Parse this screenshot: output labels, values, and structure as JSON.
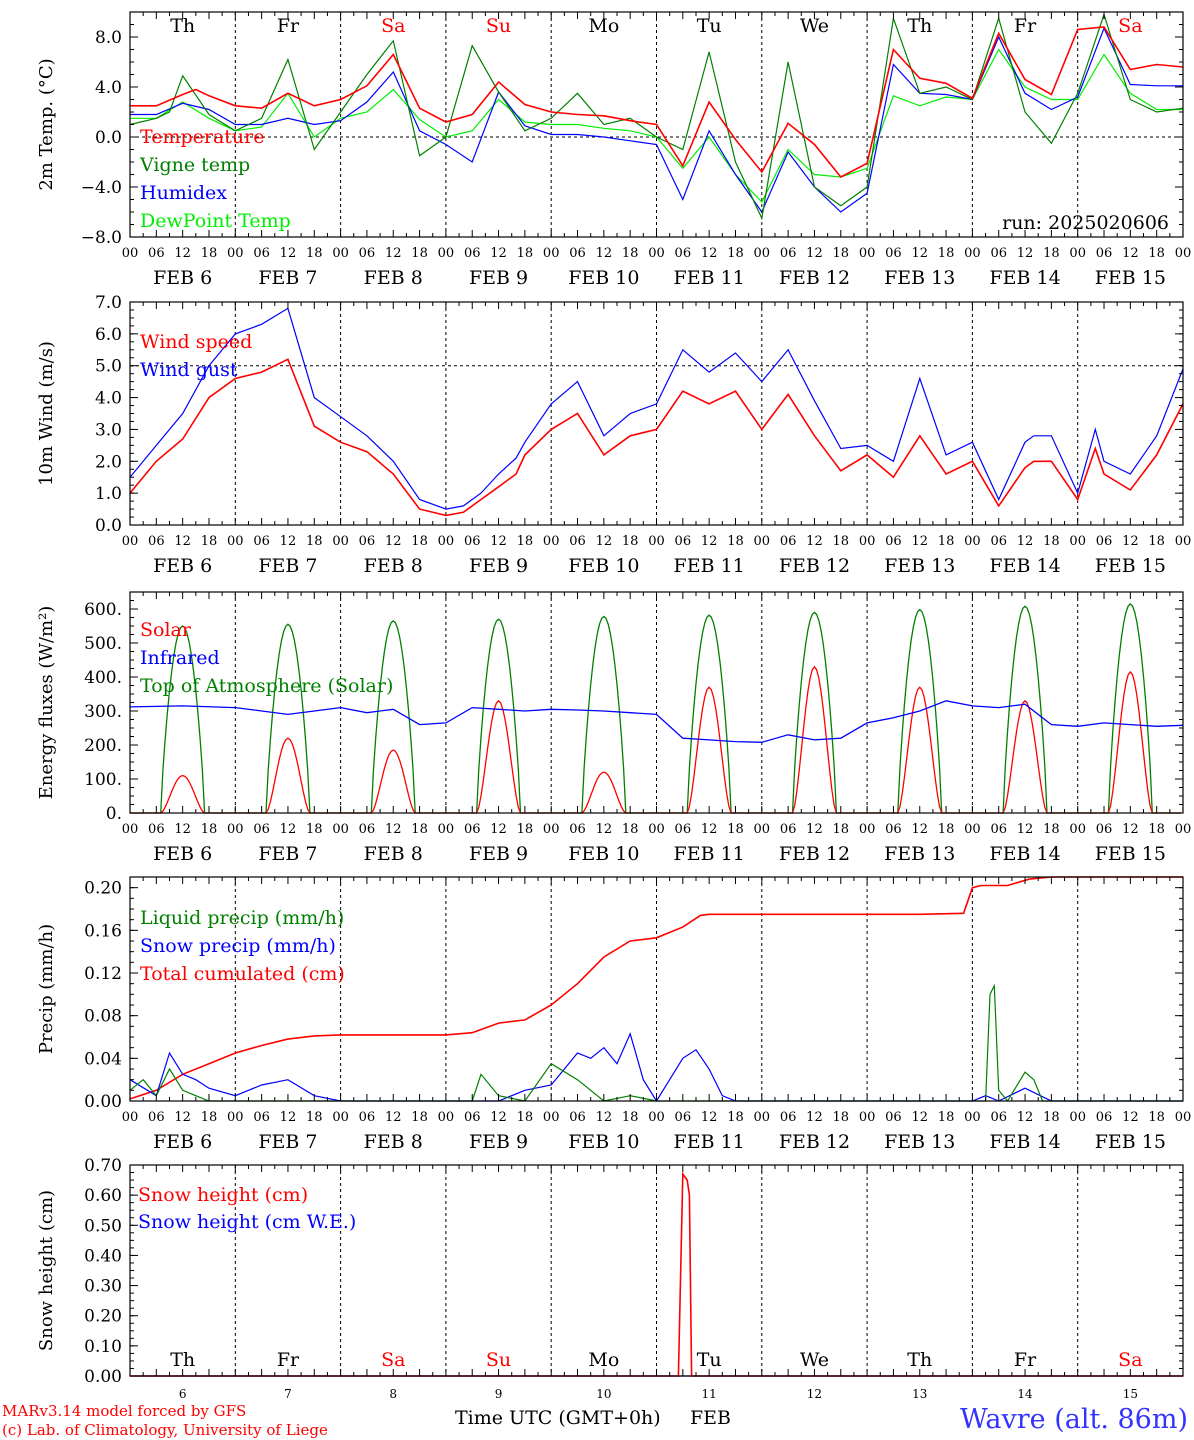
{
  "days": [
    {
      "wk": "Th",
      "date": "FEB  6",
      "num": "6",
      "wkColor": "#000000"
    },
    {
      "wk": "Fr",
      "date": "FEB  7",
      "num": "7",
      "wkColor": "#000000"
    },
    {
      "wk": "Sa",
      "date": "FEB  8",
      "num": "8",
      "wkColor": "#ff0000"
    },
    {
      "wk": "Su",
      "date": "FEB  9",
      "num": "9",
      "wkColor": "#ff0000"
    },
    {
      "wk": "Mo",
      "date": "FEB 10",
      "num": "10",
      "wkColor": "#000000"
    },
    {
      "wk": "Tu",
      "date": "FEB 11",
      "num": "11",
      "wkColor": "#000000"
    },
    {
      "wk": "We",
      "date": "FEB 12",
      "num": "12",
      "wkColor": "#000000"
    },
    {
      "wk": "Th",
      "date": "FEB 13",
      "num": "13",
      "wkColor": "#000000"
    },
    {
      "wk": "Fr",
      "date": "FEB 14",
      "num": "14",
      "wkColor": "#000000"
    },
    {
      "wk": "Sa",
      "date": "FEB 15",
      "num": "15",
      "wkColor": "#ff0000"
    }
  ],
  "hour_ticks": [
    "00",
    "06",
    "12",
    "18"
  ],
  "footer": {
    "model": "MARv3.14 model forced by GFS",
    "copyright": "(c) Lab. of Climatology, University of Liege",
    "xlabel": "Time UTC (GMT+0h)",
    "month": "FEB",
    "station": "Wavre (alt. 86m)"
  },
  "chart_data": [
    {
      "type": "line",
      "ylabel": "2m Temp. (°C)",
      "ylim": [
        -8,
        10
      ],
      "yticks": [
        -8,
        -4,
        0,
        4,
        8
      ],
      "ytick_labels": [
        "−8.0",
        "−4.0",
        "0.0",
        "4.0",
        "8.0"
      ],
      "refline": 0,
      "annotation": "run: 2025020606",
      "x_unit": "hours since FEB 6 00 UTC",
      "series": [
        {
          "name": "Temperature",
          "color": "#ff0000",
          "x": [
            0,
            6,
            12,
            15,
            18,
            24,
            30,
            36,
            42,
            48,
            54,
            60,
            66,
            72,
            78,
            84,
            90,
            96,
            102,
            108,
            114,
            120,
            126,
            132,
            138,
            144,
            150,
            156,
            162,
            168,
            174,
            180,
            186,
            192,
            198,
            204,
            210,
            216,
            222,
            228,
            234,
            240
          ],
          "y": [
            2.5,
            2.5,
            3.4,
            3.8,
            3.3,
            2.5,
            2.3,
            3.5,
            2.5,
            3.0,
            4.1,
            6.6,
            2.3,
            1.2,
            1.8,
            4.4,
            2.6,
            2.0,
            1.8,
            1.7,
            1.3,
            1.0,
            -2.3,
            2.8,
            -0.2,
            -2.8,
            1.1,
            -0.6,
            -3.2,
            -2.1,
            7.0,
            4.7,
            4.3,
            3.1,
            8.3,
            4.6,
            3.4,
            8.6,
            8.8,
            5.4,
            5.8,
            5.6
          ]
        },
        {
          "name": "Vigne temp",
          "color": "#008000",
          "x": [
            0,
            6,
            9,
            12,
            18,
            24,
            30,
            36,
            42,
            48,
            54,
            60,
            66,
            72,
            78,
            84,
            90,
            96,
            102,
            108,
            114,
            120,
            126,
            132,
            138,
            144,
            150,
            156,
            162,
            168,
            174,
            180,
            186,
            192,
            198,
            204,
            210,
            216,
            222,
            228,
            234,
            240
          ],
          "y": [
            1.0,
            1.5,
            2.0,
            4.9,
            1.8,
            0.5,
            1.5,
            6.2,
            -1.0,
            2.0,
            5.0,
            7.7,
            -1.5,
            0.0,
            7.3,
            3.6,
            0.5,
            1.5,
            3.5,
            1.0,
            1.5,
            0.0,
            -1.0,
            6.8,
            -2.0,
            -6.5,
            6.0,
            -4.0,
            -5.5,
            -4.0,
            9.5,
            3.5,
            4.0,
            3.0,
            9.5,
            2.0,
            -0.5,
            3.5,
            9.8,
            3.0,
            2.0,
            2.3
          ]
        },
        {
          "name": "Humidex",
          "color": "#0000ff",
          "x": [
            0,
            6,
            12,
            18,
            24,
            30,
            36,
            42,
            48,
            54,
            60,
            66,
            72,
            78,
            84,
            90,
            96,
            102,
            108,
            114,
            120,
            126,
            132,
            138,
            144,
            150,
            156,
            162,
            168,
            174,
            180,
            186,
            192,
            198,
            204,
            210,
            216,
            222,
            228,
            234,
            240
          ],
          "y": [
            1.8,
            1.8,
            2.7,
            2.2,
            1.0,
            1.0,
            1.5,
            1.0,
            1.3,
            2.8,
            5.2,
            0.5,
            -0.6,
            -2.0,
            3.6,
            0.9,
            0.2,
            0.2,
            0.0,
            -0.3,
            -0.6,
            -5.0,
            0.5,
            -3.0,
            -6.0,
            -1.2,
            -4.0,
            -6.0,
            -4.5,
            5.8,
            3.5,
            3.4,
            3.0,
            8.0,
            3.5,
            2.2,
            3.2,
            8.7,
            4.2,
            4.1,
            4.1
          ]
        },
        {
          "name": "DewPoint Temp",
          "color": "#00ee00",
          "x": [
            0,
            6,
            12,
            18,
            24,
            30,
            36,
            42,
            48,
            54,
            60,
            66,
            72,
            78,
            84,
            90,
            96,
            102,
            108,
            114,
            120,
            126,
            132,
            138,
            144,
            150,
            156,
            162,
            168,
            174,
            180,
            186,
            192,
            198,
            204,
            210,
            216,
            222,
            228,
            234,
            240
          ],
          "y": [
            1.5,
            1.5,
            2.8,
            1.5,
            0.5,
            0.8,
            3.5,
            0.0,
            1.5,
            2.0,
            3.8,
            1.4,
            0.0,
            0.5,
            3.0,
            1.2,
            1.0,
            1.0,
            0.7,
            0.5,
            0.0,
            -2.5,
            0.0,
            -3.0,
            -5.2,
            -1.0,
            -3.0,
            -3.2,
            -2.5,
            3.3,
            2.5,
            3.2,
            3.0,
            7.0,
            4.0,
            3.0,
            3.0,
            6.6,
            3.5,
            2.2,
            2.2
          ]
        }
      ]
    },
    {
      "type": "line",
      "ylabel": "10m Wind (m/s)",
      "ylim": [
        0,
        7
      ],
      "yticks": [
        0,
        1,
        2,
        3,
        4,
        5,
        6,
        7
      ],
      "ytick_labels": [
        "0.0",
        "1.0",
        "2.0",
        "3.0",
        "4.0",
        "5.0",
        "6.0",
        "7.0"
      ],
      "refline": 5,
      "x_unit": "hours since FEB 6 00 UTC",
      "series": [
        {
          "name": "Wind speed",
          "color": "#ff0000",
          "x": [
            0,
            6,
            12,
            18,
            24,
            30,
            36,
            42,
            48,
            54,
            60,
            66,
            72,
            76,
            80,
            84,
            88,
            90,
            96,
            102,
            108,
            114,
            120,
            126,
            132,
            138,
            144,
            150,
            156,
            162,
            168,
            174,
            180,
            186,
            192,
            198,
            204,
            206,
            210,
            216,
            220,
            222,
            228,
            234,
            240
          ],
          "y": [
            1.0,
            2.0,
            2.7,
            4.0,
            4.6,
            4.8,
            5.2,
            3.1,
            2.6,
            2.3,
            1.6,
            0.5,
            0.3,
            0.4,
            0.8,
            1.2,
            1.6,
            2.2,
            3.0,
            3.5,
            2.2,
            2.8,
            3.0,
            4.2,
            3.8,
            4.2,
            3.0,
            4.1,
            2.8,
            1.7,
            2.2,
            1.5,
            2.8,
            1.6,
            2.0,
            0.6,
            1.8,
            2.0,
            2.0,
            0.8,
            2.4,
            1.6,
            1.1,
            2.2,
            3.8
          ]
        },
        {
          "name": "Wind gust",
          "color": "#0000ff",
          "x": [
            0,
            6,
            12,
            18,
            24,
            30,
            36,
            42,
            48,
            54,
            60,
            66,
            72,
            76,
            80,
            84,
            88,
            90,
            96,
            102,
            108,
            114,
            120,
            126,
            132,
            138,
            144,
            150,
            156,
            162,
            168,
            174,
            180,
            186,
            192,
            198,
            204,
            206,
            210,
            216,
            220,
            222,
            228,
            234,
            240
          ],
          "y": [
            1.5,
            2.5,
            3.5,
            5.0,
            6.0,
            6.3,
            6.8,
            4.0,
            3.4,
            2.8,
            2.0,
            0.8,
            0.5,
            0.6,
            1.0,
            1.6,
            2.1,
            2.6,
            3.8,
            4.5,
            2.8,
            3.5,
            3.8,
            5.5,
            4.8,
            5.4,
            4.5,
            5.5,
            3.9,
            2.4,
            2.5,
            2.0,
            4.6,
            2.2,
            2.6,
            0.8,
            2.6,
            2.8,
            2.8,
            1.0,
            3.0,
            2.0,
            1.6,
            2.8,
            4.9
          ]
        }
      ]
    },
    {
      "type": "line",
      "ylabel": "Energy fluxes (W/m²)",
      "ylim": [
        0,
        650
      ],
      "yticks": [
        0,
        100,
        200,
        300,
        400,
        500,
        600
      ],
      "ytick_labels": [
        "0.",
        "100.",
        "200.",
        "300.",
        "400.",
        "500.",
        "600."
      ],
      "x_unit": "hours since FEB 6 00 UTC",
      "daily_peaks": {
        "toa_solar": [
          550,
          555,
          565,
          570,
          578,
          582,
          590,
          598,
          608,
          615
        ],
        "solar": [
          110,
          220,
          185,
          330,
          120,
          370,
          430,
          370,
          330,
          415
        ]
      },
      "series": [
        {
          "name": "Solar",
          "color": "#ff0000"
        },
        {
          "name": "Infrared",
          "color": "#0000ff",
          "x": [
            0,
            12,
            24,
            36,
            42,
            48,
            54,
            60,
            66,
            72,
            78,
            84,
            90,
            96,
            102,
            108,
            114,
            120,
            126,
            132,
            138,
            144,
            150,
            156,
            162,
            168,
            174,
            180,
            186,
            192,
            198,
            204,
            210,
            216,
            222,
            228,
            234,
            240
          ],
          "y": [
            312,
            315,
            310,
            290,
            300,
            310,
            295,
            305,
            260,
            265,
            310,
            305,
            300,
            305,
            303,
            300,
            295,
            290,
            220,
            215,
            210,
            208,
            230,
            215,
            220,
            265,
            280,
            300,
            330,
            315,
            310,
            320,
            260,
            255,
            265,
            260,
            255,
            258
          ]
        },
        {
          "name": "Top of Atmosphere (Solar)",
          "color": "#008000"
        }
      ]
    },
    {
      "type": "line",
      "ylabel": "Precip (mm/h)",
      "ylim": [
        0,
        0.21
      ],
      "yticks": [
        0,
        0.04,
        0.08,
        0.12,
        0.16,
        0.2
      ],
      "ytick_labels": [
        "0.00",
        "0.04",
        "0.08",
        "0.12",
        "0.16",
        "0.20"
      ],
      "x_unit": "hours since FEB 6 00 UTC",
      "series": [
        {
          "name": "Liquid precip (mm/h)",
          "color": "#008000",
          "x": [
            0,
            3,
            6,
            9,
            12,
            15,
            18,
            24,
            60,
            72,
            78,
            80,
            84,
            90,
            96,
            102,
            108,
            114,
            120,
            192,
            195,
            196,
            197,
            198,
            200,
            204,
            206,
            208,
            212,
            240
          ],
          "y": [
            0.01,
            0.02,
            0.005,
            0.03,
            0.01,
            0.005,
            0.0,
            0.0,
            0.0,
            0.0,
            0.0,
            0.025,
            0.005,
            0.0,
            0.035,
            0.02,
            0.0,
            0.005,
            0.0,
            0.0,
            0.0,
            0.1,
            0.108,
            0.01,
            0.0,
            0.027,
            0.02,
            0.0,
            0.0,
            0.0
          ]
        },
        {
          "name": "Snow precip (mm/h)",
          "color": "#0000ff",
          "x": [
            0,
            6,
            9,
            12,
            15,
            18,
            24,
            30,
            36,
            42,
            48,
            84,
            90,
            96,
            99,
            102,
            105,
            108,
            111,
            114,
            117,
            120,
            126,
            129,
            132,
            135,
            138,
            144,
            192,
            195,
            198,
            204,
            210,
            240
          ],
          "y": [
            0.02,
            0.005,
            0.045,
            0.025,
            0.02,
            0.012,
            0.005,
            0.015,
            0.02,
            0.005,
            0.0,
            0.0,
            0.01,
            0.015,
            0.03,
            0.045,
            0.04,
            0.05,
            0.035,
            0.063,
            0.02,
            0.0,
            0.04,
            0.048,
            0.03,
            0.005,
            0.0,
            0.0,
            0.0,
            0.005,
            0.0,
            0.012,
            0.0,
            0.0
          ]
        },
        {
          "name": "Total cumulated (cm)",
          "color": "#ff0000",
          "x": [
            0,
            6,
            12,
            18,
            24,
            30,
            36,
            42,
            48,
            60,
            72,
            78,
            84,
            90,
            96,
            102,
            108,
            114,
            120,
            126,
            130,
            132,
            150,
            180,
            190,
            192,
            194,
            200,
            205,
            210,
            240
          ],
          "y": [
            0.002,
            0.01,
            0.025,
            0.035,
            0.045,
            0.052,
            0.058,
            0.061,
            0.062,
            0.062,
            0.062,
            0.064,
            0.073,
            0.076,
            0.09,
            0.11,
            0.135,
            0.15,
            0.153,
            0.163,
            0.174,
            0.175,
            0.175,
            0.175,
            0.176,
            0.2,
            0.202,
            0.202,
            0.208,
            0.21,
            0.21
          ]
        }
      ]
    },
    {
      "type": "line",
      "ylabel": "Snow height (cm)",
      "ylim": [
        0,
        0.7
      ],
      "yticks": [
        0,
        0.1,
        0.2,
        0.3,
        0.4,
        0.5,
        0.6,
        0.7
      ],
      "ytick_labels": [
        "0.00",
        "0.10",
        "0.20",
        "0.30",
        "0.40",
        "0.50",
        "0.60",
        "0.70"
      ],
      "x_unit": "hours since FEB 6 00 UTC",
      "series": [
        {
          "name": "Snow height (cm)",
          "color": "#ff0000",
          "x": [
            0,
            125,
            126,
            127,
            127.5,
            128,
            240
          ],
          "y": [
            0,
            0,
            0.67,
            0.65,
            0.6,
            0,
            0
          ]
        },
        {
          "name": "Snow height (cm W.E.)",
          "color": "#0000ff",
          "x": [
            0,
            240
          ],
          "y": [
            0,
            0
          ]
        }
      ]
    }
  ]
}
